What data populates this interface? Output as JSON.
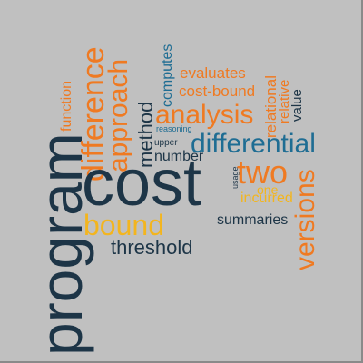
{
  "colors": {
    "background": "#c0c0c0",
    "navy": "#1d3547",
    "blue": "#1f6d93",
    "orange": "#ef7a22",
    "yellow": "#f3b51e"
  },
  "words": {
    "program": "program",
    "difference": "difference",
    "approach": "approach",
    "function": "function",
    "cost": "cost",
    "bound": "bound",
    "threshold": "threshold",
    "method": "method",
    "computes": "computes",
    "evaluates": "evaluates",
    "cost_bound": "cost-bound",
    "reasoning": "reasoning",
    "upper": "upper",
    "analysis": "analysis",
    "relational": "relational",
    "relative": "relative",
    "value": "value",
    "differential": "differential",
    "number": "number",
    "two": "two",
    "usage": "usage",
    "one": "one",
    "incurred": "incurred",
    "versions": "versions",
    "summaries": "summaries"
  }
}
